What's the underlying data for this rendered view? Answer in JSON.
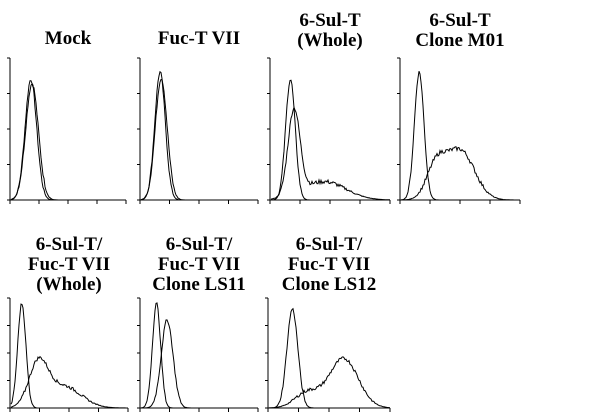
{
  "panels": [
    {
      "title": [
        "Mock"
      ]
    },
    {
      "title": [
        "Fuc-T VII"
      ]
    },
    {
      "title": [
        "6-Sul-T",
        "(Whole)"
      ]
    },
    {
      "title": [
        "6-Sul-T",
        "Clone M01"
      ]
    },
    {
      "title": [
        "6-Sul-T/",
        "Fuc-T VII",
        "(Whole)"
      ]
    },
    {
      "title": [
        "6-Sul-T/",
        "Fuc-T VII",
        "Clone LS11"
      ]
    },
    {
      "title": [
        "6-Sul-T/",
        "Fuc-T VII",
        "Clone LS12"
      ]
    }
  ]
}
